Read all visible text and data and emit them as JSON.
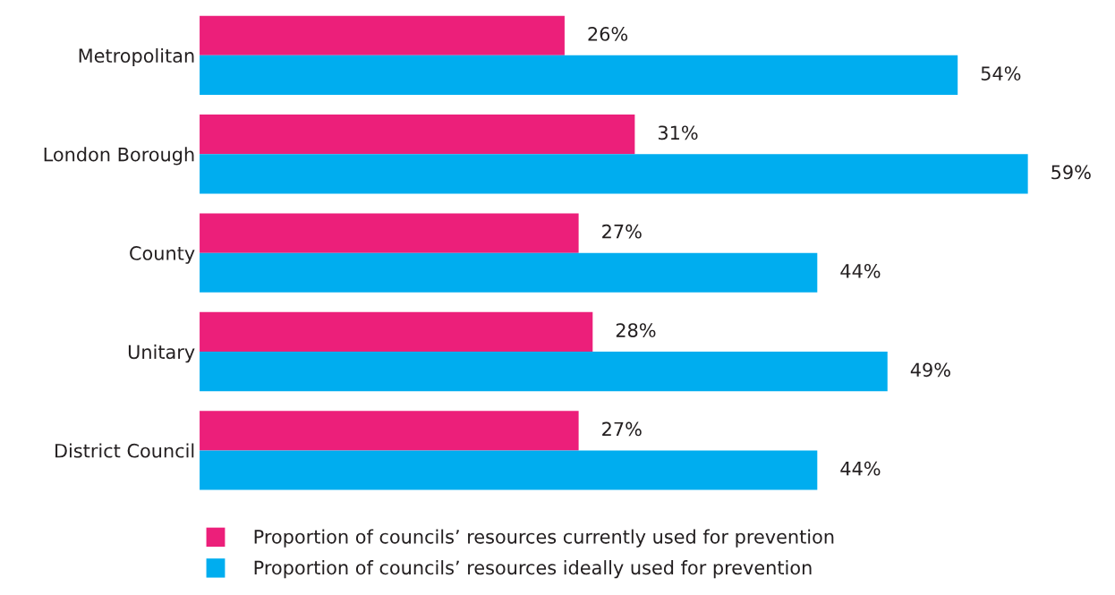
{
  "chart_data": {
    "type": "bar",
    "orientation": "horizontal",
    "categories": [
      "Metropolitan",
      "London Borough",
      "County",
      "Unitary",
      "District Council"
    ],
    "series": [
      {
        "name": "Proportion of councils’ resources currently used for prevention",
        "color": "#ec1f7a",
        "values": [
          26,
          31,
          27,
          28,
          27
        ],
        "value_labels": [
          "26%",
          "31%",
          "27%",
          "28%",
          "27%"
        ]
      },
      {
        "name": "Proportion of councils’ resources ideally used for prevention",
        "color": "#00adef",
        "values": [
          54,
          59,
          44,
          49,
          44
        ],
        "value_labels": [
          "54%",
          "59%",
          "44%",
          "49%",
          "44%"
        ]
      }
    ],
    "tick_labels": "y",
    "grid": false,
    "legend": "bottom"
  }
}
